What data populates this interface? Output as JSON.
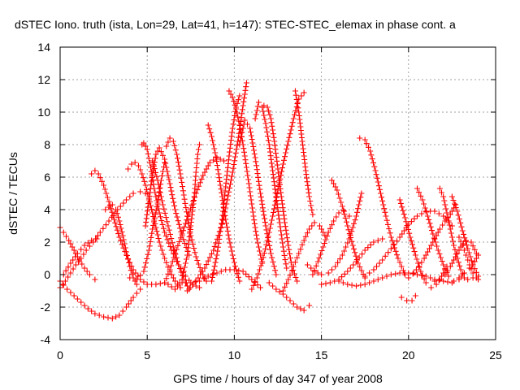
{
  "chart_data": {
    "type": "scatter",
    "title": "dSTEC Iono. truth (ista, Lon=29, Lat=41, h=147): STEC-STEC_elemax in phase cont. a",
    "xlabel": "GPS time / hours of day 347 of year 2008",
    "ylabel": "dSTEC  / TECUs",
    "xlim": [
      0,
      25
    ],
    "ylim": [
      -4,
      14
    ],
    "x_ticks": [
      0,
      5,
      10,
      15,
      20,
      25
    ],
    "y_ticks": [
      -4,
      -2,
      0,
      2,
      4,
      6,
      8,
      10,
      12,
      14
    ],
    "grid": true,
    "marker": "+",
    "color": "#ff0000",
    "series": [
      {
        "x": [
          0.0,
          0.4,
          0.8,
          1.2,
          1.6,
          2.0,
          2.5,
          3.0,
          3.4,
          3.8,
          4.2,
          4.6
        ],
        "y": [
          -0.4,
          -0.9,
          -1.3,
          -1.7,
          -2.1,
          -2.4,
          -2.6,
          -2.7,
          -2.5,
          -2.0,
          -1.4,
          -0.9
        ]
      },
      {
        "x": [
          0.0,
          0.2,
          0.5,
          0.8,
          1.1,
          1.4,
          1.7,
          2.0
        ],
        "y": [
          2.9,
          2.6,
          2.1,
          1.5,
          0.9,
          0.4,
          0.0,
          -0.3
        ]
      },
      {
        "x": [
          0.0,
          0.3,
          0.6,
          0.9,
          1.2,
          1.5,
          1.9,
          2.3,
          2.8,
          3.3,
          3.8,
          4.2,
          4.6,
          4.9
        ],
        "y": [
          -0.8,
          -0.4,
          0.1,
          0.6,
          1.0,
          1.5,
          2.0,
          2.6,
          3.3,
          4.0,
          4.6,
          5.0,
          5.1,
          5.0
        ]
      },
      {
        "x": [
          0.2,
          0.6,
          1.0,
          1.4,
          1.8,
          2.1
        ],
        "y": [
          0.0,
          0.7,
          1.3,
          1.8,
          2.1,
          2.2
        ]
      },
      {
        "x": [
          1.8,
          2.0,
          2.2,
          2.5,
          2.8,
          3.1,
          3.4,
          3.8,
          4.2,
          4.6,
          5.0,
          5.5,
          6.0
        ],
        "y": [
          6.2,
          6.4,
          6.2,
          5.5,
          4.5,
          3.4,
          2.3,
          1.2,
          0.3,
          -0.3,
          -0.6,
          -0.6,
          -0.5
        ]
      },
      {
        "x": [
          2.6,
          3.0,
          3.2,
          3.4,
          3.6,
          3.8,
          4.0,
          4.2,
          4.4
        ],
        "y": [
          4.0,
          4.3,
          4.0,
          3.3,
          2.4,
          1.4,
          0.5,
          -0.2,
          -0.6
        ]
      },
      {
        "x": [
          3.9,
          4.1,
          4.3,
          4.5,
          4.7,
          4.9,
          5.1,
          5.3,
          5.5,
          5.7,
          6.0,
          6.3,
          6.6,
          6.9
        ],
        "y": [
          6.5,
          6.8,
          6.9,
          6.7,
          6.2,
          5.5,
          4.7,
          3.8,
          2.9,
          2.0,
          1.0,
          0.2,
          -0.4,
          -0.8
        ]
      },
      {
        "x": [
          4.0,
          4.4,
          4.8,
          5.1,
          5.3,
          5.6,
          5.8,
          6.0
        ],
        "y": [
          -0.2,
          -0.3,
          0.2,
          1.5,
          2.8,
          4.4,
          5.8,
          6.9
        ]
      },
      {
        "x": [
          4.7,
          4.8,
          5.0,
          5.2,
          5.4,
          5.7,
          6.0,
          6.4,
          6.8,
          7.2,
          7.6,
          8.0
        ],
        "y": [
          8.0,
          8.1,
          7.7,
          6.6,
          5.3,
          3.8,
          2.6,
          1.5,
          0.6,
          -0.1,
          -0.6,
          -0.8
        ]
      },
      {
        "x": [
          4.9,
          5.1,
          5.3,
          5.5,
          5.7,
          6.0,
          6.3,
          6.6,
          7.0,
          7.4
        ],
        "y": [
          3.0,
          4.6,
          6.2,
          7.4,
          7.8,
          7.1,
          5.6,
          4.0,
          2.4,
          1.2
        ]
      },
      {
        "x": [
          5.3,
          5.6,
          5.9,
          6.2,
          6.5,
          6.8,
          7.1,
          7.4
        ],
        "y": [
          7.0,
          5.8,
          4.3,
          3.0,
          1.7,
          0.6,
          -0.3,
          -0.9
        ]
      },
      {
        "x": [
          6.1,
          6.3,
          6.5,
          6.7,
          6.9,
          7.1,
          7.3,
          7.5,
          7.8,
          8.1,
          8.4
        ],
        "y": [
          7.9,
          8.4,
          8.2,
          7.4,
          6.2,
          4.9,
          3.6,
          2.4,
          1.1,
          0.2,
          -0.4
        ]
      },
      {
        "x": [
          6.2,
          6.6,
          7.0,
          7.3,
          7.5,
          7.7,
          7.8,
          7.9,
          8.0
        ],
        "y": [
          -0.6,
          -0.9,
          -0.3,
          1.2,
          3.0,
          4.8,
          6.3,
          7.4,
          8.0
        ]
      },
      {
        "x": [
          6.0,
          6.3,
          6.6,
          7.0,
          7.4,
          7.8,
          8.2,
          8.6,
          9.0,
          9.4
        ],
        "y": [
          -0.5,
          0.3,
          1.3,
          2.5,
          3.8,
          5.0,
          6.1,
          6.9,
          7.2,
          7.0
        ]
      },
      {
        "x": [
          8.5,
          8.7,
          8.9,
          9.1,
          9.3,
          9.5,
          9.7,
          9.9,
          10.1,
          10.3
        ],
        "y": [
          9.2,
          8.5,
          7.5,
          6.2,
          4.8,
          3.4,
          2.2,
          1.2,
          0.3,
          -0.4
        ]
      },
      {
        "x": [
          7.3,
          7.8,
          8.3,
          8.8,
          9.3,
          9.6,
          9.9,
          10.2,
          10.5,
          10.7
        ],
        "y": [
          -1.0,
          -0.4,
          0.4,
          1.5,
          3.1,
          4.6,
          6.3,
          8.2,
          10.4,
          11.8
        ]
      },
      {
        "x": [
          8.7,
          9.0,
          9.3,
          9.5,
          9.7,
          9.9,
          10.1,
          10.3
        ],
        "y": [
          -0.4,
          1.2,
          3.4,
          5.4,
          7.3,
          9.0,
          10.3,
          11.0
        ]
      },
      {
        "x": [
          9.7,
          9.9,
          10.1,
          10.3,
          10.5,
          10.7,
          10.9,
          11.1,
          11.3,
          11.6
        ],
        "y": [
          11.3,
          10.9,
          10.2,
          9.2,
          8.0,
          6.6,
          5.1,
          3.6,
          2.2,
          0.7
        ]
      },
      {
        "x": [
          10.3,
          10.6,
          10.9,
          11.2,
          11.5,
          11.8,
          12.1,
          12.4
        ],
        "y": [
          8.0,
          9.5,
          9.0,
          7.2,
          5.0,
          3.0,
          1.3,
          0.0
        ]
      },
      {
        "x": [
          7.0,
          7.5,
          8.0,
          8.5,
          9.0,
          9.5,
          10.0,
          10.5,
          11.0,
          11.5
        ],
        "y": [
          -0.5,
          -0.5,
          -0.4,
          -0.1,
          0.1,
          0.3,
          0.3,
          0.2,
          -0.3,
          -0.8
        ]
      },
      {
        "x": [
          11.2,
          11.4,
          11.6,
          11.8,
          12.0,
          12.2,
          12.4,
          12.6,
          12.8,
          13.0
        ],
        "y": [
          9.6,
          10.6,
          10.3,
          9.3,
          8.0,
          6.4,
          4.8,
          3.2,
          1.7,
          0.4
        ]
      },
      {
        "x": [
          11.7,
          11.9,
          12.1,
          12.3,
          12.5,
          12.7,
          12.9,
          13.1,
          13.3,
          13.6
        ],
        "y": [
          10.4,
          10.3,
          9.6,
          8.2,
          6.5,
          4.8,
          3.2,
          1.8,
          0.5,
          -0.4
        ]
      },
      {
        "x": [
          11.0,
          11.3,
          11.6,
          11.9,
          12.2,
          12.5,
          12.8,
          13.1,
          13.4,
          13.7,
          14.0
        ],
        "y": [
          -0.9,
          -0.2,
          0.8,
          2.1,
          3.6,
          5.2,
          6.8,
          8.2,
          9.6,
          10.8,
          11.2
        ]
      },
      {
        "x": [
          13.5,
          13.7,
          13.9,
          14.1,
          14.3,
          14.5
        ],
        "y": [
          11.3,
          10.0,
          8.2,
          6.4,
          4.8,
          3.7
        ]
      },
      {
        "x": [
          12.0,
          12.4,
          12.8,
          13.2,
          13.6,
          14.0,
          14.3
        ],
        "y": [
          -0.5,
          -0.9,
          -1.2,
          -1.6,
          -2.0,
          -2.2,
          -1.9
        ]
      },
      {
        "x": [
          12.8,
          13.1,
          13.4,
          13.7,
          14.0,
          14.3,
          14.6,
          14.9,
          15.2
        ],
        "y": [
          -1.0,
          -0.3,
          0.5,
          1.3,
          2.1,
          2.8,
          3.2,
          3.0,
          2.4
        ]
      },
      {
        "x": [
          14.2,
          14.6,
          15.0,
          15.4,
          15.8,
          16.2,
          16.6,
          17.0,
          17.3
        ],
        "y": [
          0.6,
          0.2,
          0.0,
          0.1,
          0.5,
          1.2,
          2.2,
          3.6,
          5.0
        ]
      },
      {
        "x": [
          14.5,
          14.8,
          15.1,
          15.4,
          15.7,
          16.0,
          16.3,
          16.6
        ],
        "y": [
          0.0,
          0.8,
          1.7,
          2.6,
          3.3,
          3.8,
          3.9,
          3.6
        ]
      },
      {
        "x": [
          15.6,
          15.9,
          16.2,
          16.5,
          16.8,
          17.1,
          17.5
        ],
        "y": [
          5.8,
          5.2,
          4.2,
          3.0,
          1.8,
          0.7,
          -0.2
        ]
      },
      {
        "x": [
          17.2,
          17.5,
          17.8,
          18.1,
          18.4,
          18.7,
          19.0,
          19.4,
          19.8
        ],
        "y": [
          8.4,
          8.3,
          7.6,
          6.4,
          5.0,
          3.6,
          2.3,
          1.0,
          0.0
        ]
      },
      {
        "x": [
          16.0,
          16.5,
          17.0,
          17.5,
          18.0,
          18.5,
          19.0,
          19.5,
          20.0,
          20.5,
          21.0,
          21.5,
          22.0,
          22.5
        ],
        "y": [
          -0.4,
          -0.6,
          -0.7,
          -0.6,
          -0.4,
          -0.2,
          0.0,
          0.1,
          0.1,
          0.0,
          -0.1,
          -0.3,
          -0.4,
          -0.5
        ]
      },
      {
        "x": [
          15.0,
          15.5,
          16.0,
          16.5,
          17.0,
          17.5,
          18.0,
          18.5
        ],
        "y": [
          -0.6,
          -0.5,
          -0.3,
          0.2,
          0.8,
          1.5,
          2.0,
          2.2
        ]
      },
      {
        "x": [
          17.5,
          18.0,
          18.5,
          19.0,
          19.5,
          20.0,
          20.5,
          21.0,
          21.5,
          22.0,
          22.5
        ],
        "y": [
          -0.1,
          0.3,
          0.9,
          1.6,
          2.3,
          3.1,
          3.6,
          3.9,
          3.9,
          3.6,
          3.0
        ]
      },
      {
        "x": [
          19.5,
          19.8,
          20.1,
          20.4,
          20.7,
          21.0,
          21.3,
          21.6,
          21.9,
          22.2
        ],
        "y": [
          4.6,
          3.5,
          2.3,
          1.2,
          0.2,
          -0.5,
          -0.8,
          -0.6,
          -0.1,
          0.5
        ]
      },
      {
        "x": [
          20.5,
          20.8,
          21.1,
          21.4,
          21.7,
          22.0,
          22.3,
          22.6,
          22.9,
          23.2
        ],
        "y": [
          5.3,
          4.6,
          3.6,
          2.5,
          1.5,
          0.6,
          -0.1,
          -0.4,
          -0.3,
          0.1
        ]
      },
      {
        "x": [
          21.8,
          22.0,
          22.2,
          22.4,
          22.6,
          22.8,
          23.0,
          23.2,
          23.4,
          23.7
        ],
        "y": [
          5.3,
          4.8,
          3.8,
          2.8,
          1.8,
          1.0,
          0.3,
          -0.2,
          -0.3,
          -0.2
        ]
      },
      {
        "x": [
          20.0,
          20.3,
          20.6,
          20.9,
          21.2,
          21.5,
          21.8,
          22.1,
          22.4,
          22.7
        ],
        "y": [
          -0.2,
          0.1,
          0.5,
          1.0,
          1.6,
          2.2,
          2.8,
          3.3,
          3.7,
          4.3
        ]
      },
      {
        "x": [
          21.5,
          21.8,
          22.1,
          22.4,
          22.7,
          23.0,
          23.3,
          23.6,
          23.9
        ],
        "y": [
          -0.4,
          -0.3,
          0.0,
          0.5,
          1.1,
          1.7,
          2.1,
          2.0,
          1.3
        ]
      },
      {
        "x": [
          22.5,
          22.8,
          23.1,
          23.4,
          23.7,
          24.0
        ],
        "y": [
          4.8,
          3.9,
          2.7,
          1.6,
          0.6,
          -0.1
        ]
      },
      {
        "x": [
          22.9,
          23.1,
          23.3,
          23.5,
          23.7,
          23.9,
          24.0
        ],
        "y": [
          2.3,
          1.8,
          1.2,
          0.6,
          0.1,
          -0.2,
          -0.3
        ]
      },
      {
        "x": [
          19.6,
          19.9,
          20.2,
          20.4
        ],
        "y": [
          -1.4,
          -1.6,
          -1.6,
          -1.3
        ]
      },
      {
        "x": [
          22.6,
          22.9,
          23.2,
          23.5,
          23.8,
          24.0
        ],
        "y": [
          -0.4,
          -0.2,
          0.1,
          0.4,
          0.8,
          1.2
        ]
      }
    ]
  }
}
